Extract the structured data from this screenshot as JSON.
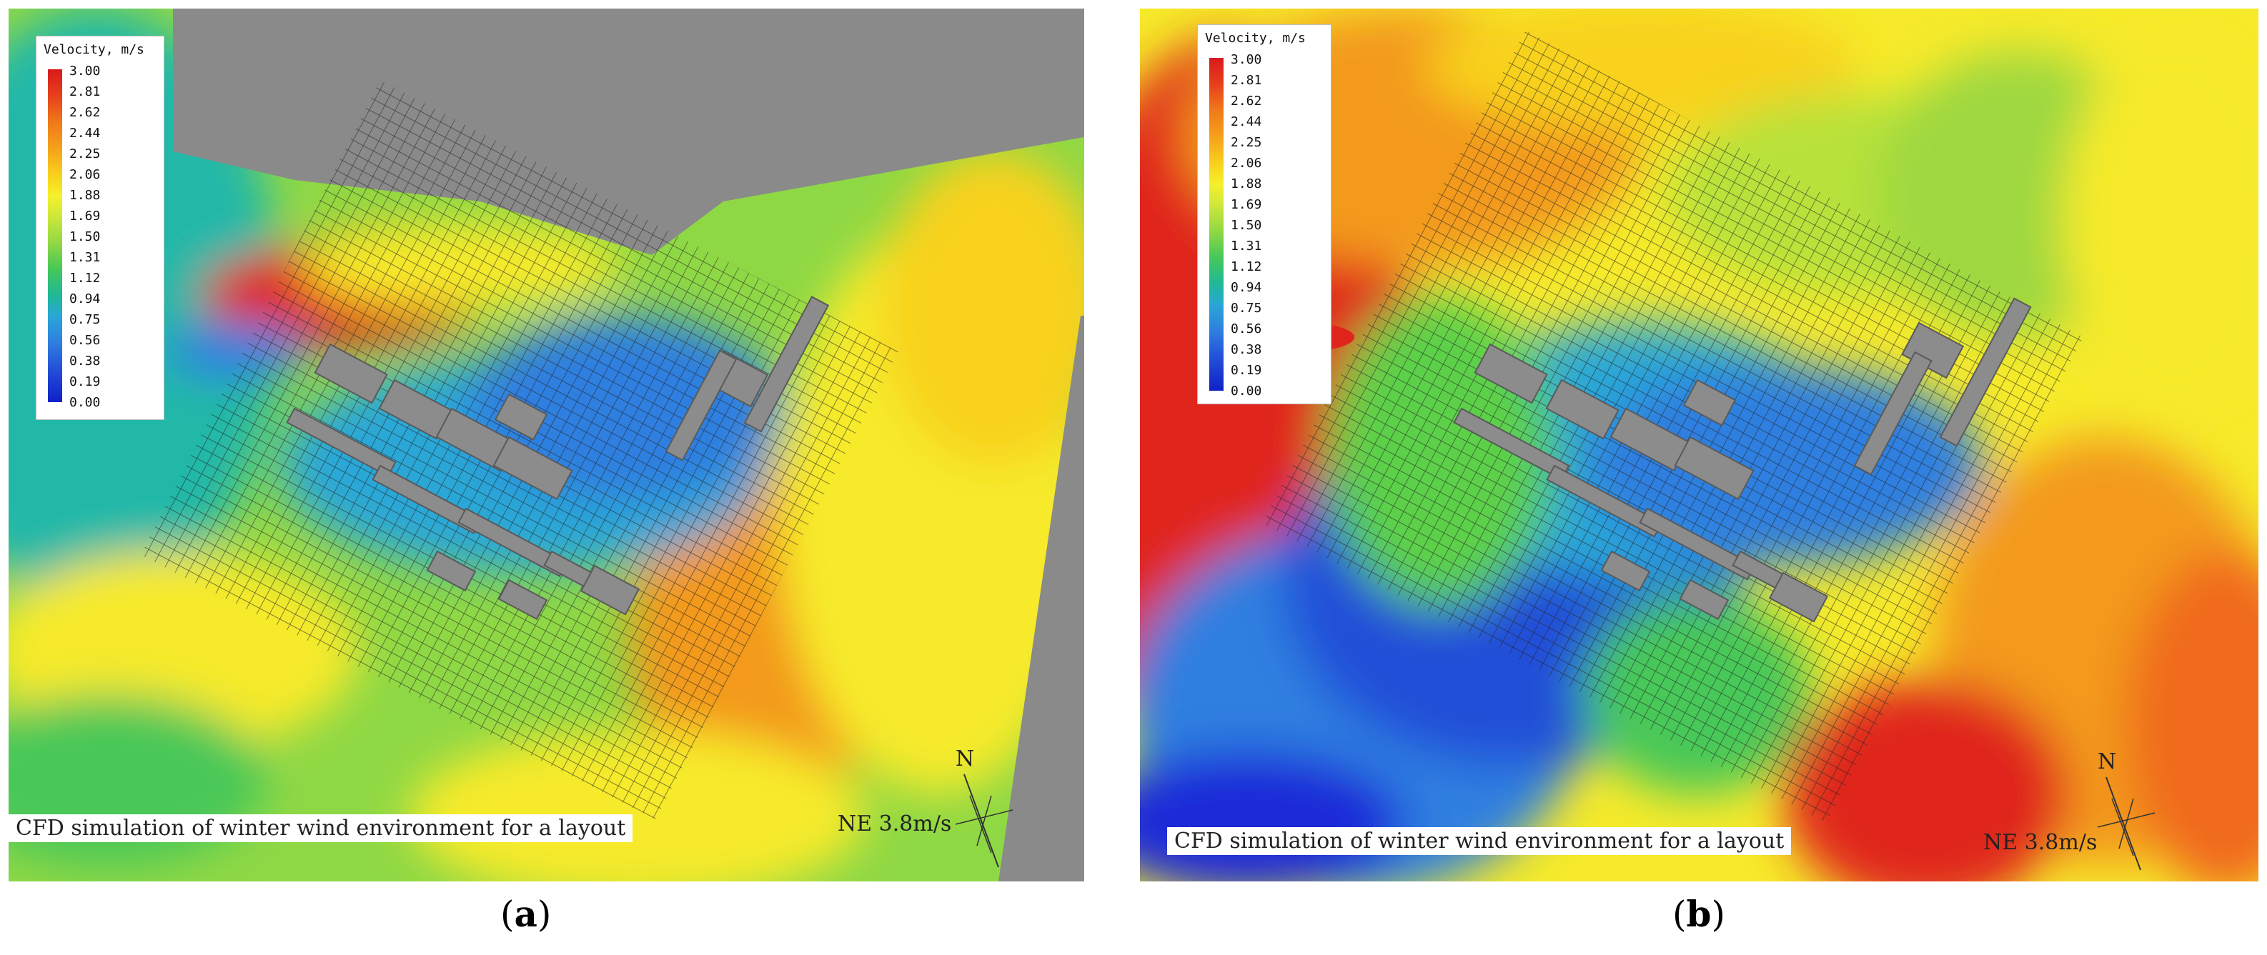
{
  "legend": {
    "title": "Velocity, m/s",
    "ticks": [
      "3.00",
      "2.81",
      "2.62",
      "2.44",
      "2.25",
      "2.06",
      "1.88",
      "1.69",
      "1.50",
      "1.31",
      "1.12",
      "0.94",
      "0.75",
      "0.56",
      "0.38",
      "0.19",
      "0.00"
    ]
  },
  "panels": [
    {
      "caption": "CFD simulation of winter wind environment for a layout",
      "wind": "NE 3.8m/s",
      "compass_letter": "N",
      "label_open": "(",
      "label_letter": "a",
      "label_close": ")"
    },
    {
      "caption": "CFD simulation of winter wind environment for a layout",
      "wind": "NE 3.8m/s",
      "compass_letter": "N",
      "label_open": "(",
      "label_letter": "b",
      "label_close": ")"
    }
  ],
  "colors": {
    "blue_low": "#1a2bd8",
    "cyan": "#22b8c8",
    "green": "#5cd04a",
    "yellow": "#f6ea2a",
    "orange": "#f39a1c",
    "red": "#e0261c",
    "building": "#8c8c8c",
    "exterior": "#8a8a8a"
  }
}
